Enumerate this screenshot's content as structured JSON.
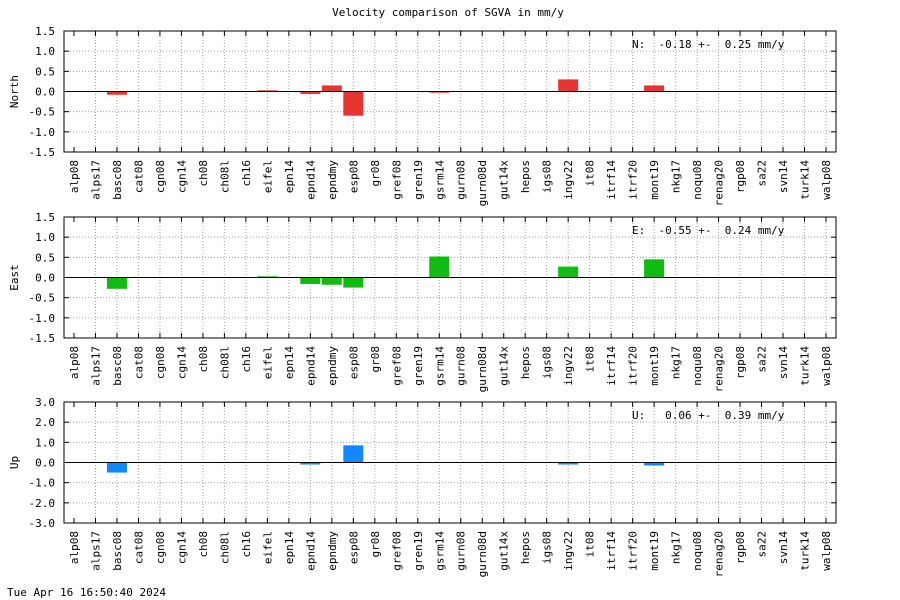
{
  "title": "Velocity comparison of SGVA in mm/y",
  "timestamp": "Tue Apr 16 16:50:40 2024",
  "chart_data": [
    {
      "type": "bar",
      "ylabel": "North",
      "ylim": [
        -1.5,
        1.5
      ],
      "yticks": [
        "1.5",
        "1.0",
        "0.5",
        "0.0",
        "-0.5",
        "-1.0",
        "-1.5"
      ],
      "annotation": "N:  -0.18 +-  0.25 mm/y",
      "color": "#e83333",
      "grid": true,
      "categories": [
        "alp08",
        "alps17",
        "basc08",
        "cat08",
        "cgn08",
        "cgn14",
        "ch08",
        "ch08l",
        "ch16",
        "eifel",
        "epn14",
        "epnd14",
        "epndmy",
        "esp08",
        "gr08",
        "gref08",
        "gren19",
        "gsrm14",
        "gurn08",
        "gurn08d",
        "gut14x",
        "hepos",
        "igs08",
        "ingv22",
        "it08",
        "itrf14",
        "itrf20",
        "mont19",
        "nkg17",
        "noqu08",
        "renag20",
        "rgp08",
        "sa22",
        "svn14",
        "turk14",
        "walp08"
      ],
      "values": [
        0,
        0,
        -0.08,
        0,
        0,
        0,
        0,
        0,
        0,
        0.03,
        0,
        -0.06,
        0.15,
        -0.6,
        0,
        0,
        0,
        -0.03,
        0,
        0,
        0,
        0,
        0,
        0.3,
        0,
        0,
        0,
        0.15,
        0,
        0,
        0,
        0,
        0,
        0,
        0,
        0
      ]
    },
    {
      "type": "bar",
      "ylabel": "East",
      "ylim": [
        -1.5,
        1.5
      ],
      "yticks": [
        "1.5",
        "1.0",
        "0.5",
        "0.0",
        "-0.5",
        "-1.0",
        "-1.5"
      ],
      "annotation": "E:  -0.55 +-  0.24 mm/y",
      "color": "#11bb11",
      "grid": true,
      "categories": [
        "alp08",
        "alps17",
        "basc08",
        "cat08",
        "cgn08",
        "cgn14",
        "ch08",
        "ch08l",
        "ch16",
        "eifel",
        "epn14",
        "epnd14",
        "epndmy",
        "esp08",
        "gr08",
        "gref08",
        "gren19",
        "gsrm14",
        "gurn08",
        "gurn08d",
        "gut14x",
        "hepos",
        "igs08",
        "ingv22",
        "it08",
        "itrf14",
        "itrf20",
        "mont19",
        "nkg17",
        "noqu08",
        "renag20",
        "rgp08",
        "sa22",
        "svn14",
        "turk14",
        "walp08"
      ],
      "values": [
        0,
        0,
        -0.28,
        0,
        0,
        0,
        0,
        0,
        0,
        0.03,
        0,
        -0.16,
        -0.18,
        -0.25,
        0,
        0,
        0,
        0.52,
        0,
        0,
        0,
        0,
        0,
        0.27,
        0,
        0,
        0,
        0.45,
        0,
        0,
        0,
        0,
        0,
        0,
        0,
        0
      ]
    },
    {
      "type": "bar",
      "ylabel": "Up",
      "ylim": [
        -3.0,
        3.0
      ],
      "yticks": [
        "3.0",
        "2.0",
        "1.0",
        "0.0",
        "-1.0",
        "-2.0",
        "-3.0"
      ],
      "annotation": "U:   0.06 +-  0.39 mm/y",
      "color": "#1188ff",
      "grid": true,
      "categories": [
        "alp08",
        "alps17",
        "basc08",
        "cat08",
        "cgn08",
        "cgn14",
        "ch08",
        "ch08l",
        "ch16",
        "eifel",
        "epn14",
        "epnd14",
        "epndmy",
        "esp08",
        "gr08",
        "gref08",
        "gren19",
        "gsrm14",
        "gurn08",
        "gurn08d",
        "gut14x",
        "hepos",
        "igs08",
        "ingv22",
        "it08",
        "itrf14",
        "itrf20",
        "mont19",
        "nkg17",
        "noqu08",
        "renag20",
        "rgp08",
        "sa22",
        "svn14",
        "turk14",
        "walp08"
      ],
      "values": [
        0,
        0,
        -0.5,
        0,
        0,
        0,
        0,
        0,
        0,
        0,
        0,
        -0.1,
        0,
        0.85,
        0,
        0,
        0,
        0,
        0,
        0,
        0,
        0,
        0,
        -0.1,
        0,
        0,
        0,
        -0.15,
        0,
        0,
        0,
        0,
        0,
        0,
        0,
        0
      ]
    }
  ]
}
